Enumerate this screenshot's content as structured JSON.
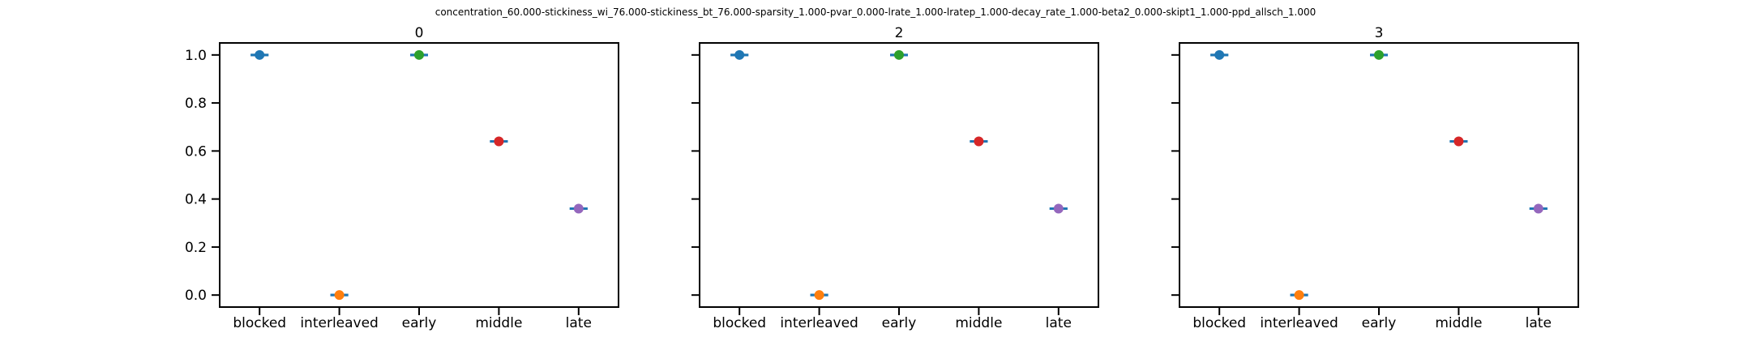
{
  "figure": {
    "suptitle": "concentration_60.000-stickiness_wi_76.000-stickiness_bt_76.000-sparsity_1.000-pvar_0.000-lrate_1.000-lratep_1.000-decay_rate_1.000-beta2_0.000-skipt1_1.000-ppd_allsch_1.000"
  },
  "colors": {
    "errorbar": "#1f77b4",
    "points": [
      "#1f77b4",
      "#ff7f0e",
      "#2ca02c",
      "#d62728",
      "#9467bd"
    ],
    "axes": "#000000"
  },
  "chart_data": [
    {
      "type": "scatter",
      "title": "0",
      "categories": [
        "blocked",
        "interleaved",
        "early",
        "middle",
        "late"
      ],
      "values": [
        1.0,
        0.0,
        1.0,
        0.64,
        0.36
      ],
      "errors": [
        0.0,
        0.0,
        0.0,
        0.0,
        0.0
      ],
      "ylim": [
        -0.05,
        1.05
      ],
      "yticks": [
        "0.0",
        "0.2",
        "0.4",
        "0.6",
        "0.8",
        "1.0"
      ],
      "show_ytick_labels": true,
      "grid": false
    },
    {
      "type": "scatter",
      "title": "2",
      "categories": [
        "blocked",
        "interleaved",
        "early",
        "middle",
        "late"
      ],
      "values": [
        1.0,
        0.0,
        1.0,
        0.64,
        0.36
      ],
      "errors": [
        0.0,
        0.0,
        0.0,
        0.0,
        0.0
      ],
      "ylim": [
        -0.05,
        1.05
      ],
      "yticks": [
        "0.0",
        "0.2",
        "0.4",
        "0.6",
        "0.8",
        "1.0"
      ],
      "show_ytick_labels": false,
      "grid": false
    },
    {
      "type": "scatter",
      "title": "3",
      "categories": [
        "blocked",
        "interleaved",
        "early",
        "middle",
        "late"
      ],
      "values": [
        1.0,
        0.0,
        1.0,
        0.64,
        0.36
      ],
      "errors": [
        0.0,
        0.0,
        0.0,
        0.0,
        0.0
      ],
      "ylim": [
        -0.05,
        1.05
      ],
      "yticks": [
        "0.0",
        "0.2",
        "0.4",
        "0.6",
        "0.8",
        "1.0"
      ],
      "show_ytick_labels": false,
      "grid": false
    }
  ]
}
